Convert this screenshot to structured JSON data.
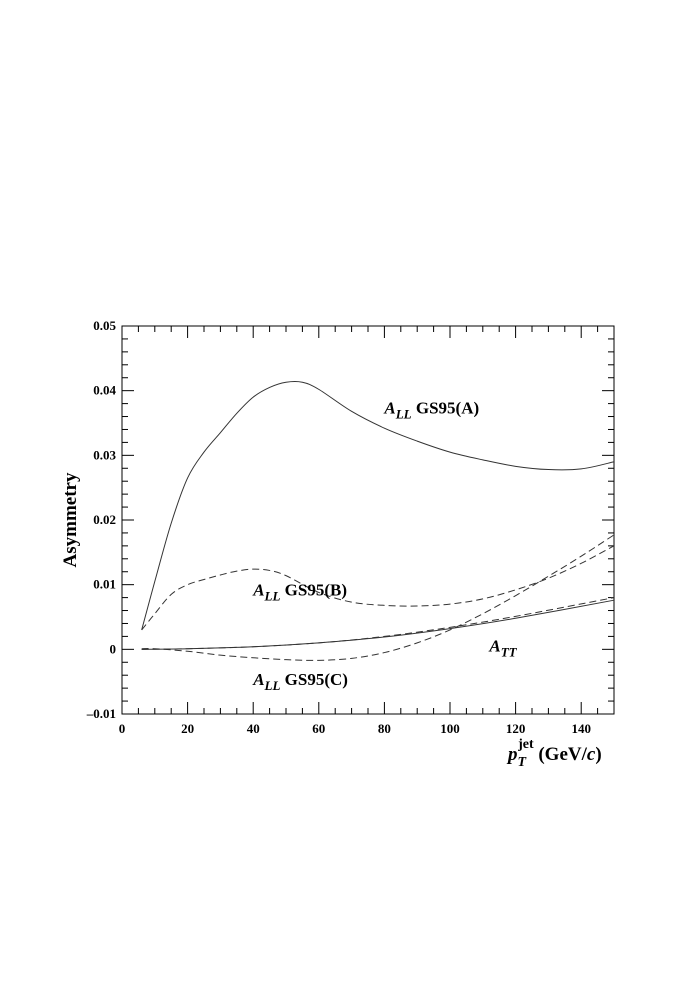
{
  "chart_data": {
    "type": "line",
    "title": "",
    "xlabel": {
      "main": "p",
      "sub": "T",
      "sup": "jet",
      "unit_open": " (GeV/",
      "unit_italic": "c",
      "unit_close": ")"
    },
    "ylabel": "Asymmetry",
    "xlim": [
      0,
      150
    ],
    "ylim": [
      -0.01,
      0.05
    ],
    "x_major_ticks": [
      0,
      20,
      40,
      60,
      80,
      100,
      120,
      140
    ],
    "x_tick_labels": [
      "0",
      "20",
      "40",
      "60",
      "80",
      "100",
      "120",
      "140"
    ],
    "y_major_ticks": [
      -0.01,
      0,
      0.01,
      0.02,
      0.03,
      0.04,
      0.05
    ],
    "y_tick_labels": [
      "–0.01",
      "0",
      "0.01",
      "0.02",
      "0.03",
      "0.04",
      "0.05"
    ],
    "grid": false,
    "legend": "none",
    "series": [
      {
        "style": "solid",
        "x": [
          6,
          10,
          15,
          20,
          25,
          30,
          35,
          40,
          45,
          50,
          55,
          60,
          70,
          80,
          90,
          100,
          110,
          120,
          130,
          140,
          150
        ],
        "y": [
          0.003,
          0.0105,
          0.0195,
          0.0265,
          0.0305,
          0.0335,
          0.0365,
          0.039,
          0.0405,
          0.0413,
          0.0413,
          0.0402,
          0.0368,
          0.0342,
          0.0322,
          0.0305,
          0.0293,
          0.0283,
          0.0278,
          0.0279,
          0.029
        ]
      },
      {
        "style": "dashed",
        "x": [
          6,
          10,
          15,
          20,
          25,
          30,
          35,
          40,
          45,
          50,
          60,
          70,
          80,
          90,
          100,
          110,
          120,
          130,
          140,
          150
        ],
        "y": [
          0.003,
          0.0055,
          0.0085,
          0.01,
          0.0108,
          0.0115,
          0.0121,
          0.0124,
          0.0122,
          0.0114,
          0.0088,
          0.0073,
          0.0068,
          0.0067,
          0.007,
          0.0078,
          0.0092,
          0.011,
          0.0133,
          0.016
        ]
      },
      {
        "style": "dashed",
        "x": [
          6,
          10,
          20,
          30,
          40,
          50,
          60,
          70,
          80,
          90,
          100,
          110,
          120,
          130,
          140,
          150
        ],
        "y": [
          0.0001,
          0.0001,
          -0.0003,
          -0.0009,
          -0.0013,
          -0.0016,
          -0.0017,
          -0.0014,
          -0.0005,
          0.001,
          0.003,
          0.0055,
          0.0083,
          0.0113,
          0.0144,
          0.0177
        ]
      },
      {
        "style": "solid",
        "x": [
          6,
          20,
          40,
          60,
          80,
          100,
          120,
          150
        ],
        "y": [
          0.0,
          0.0001,
          0.0004,
          0.001,
          0.0019,
          0.0032,
          0.0048,
          0.0076
        ]
      },
      {
        "style": "dashed",
        "x": [
          6,
          20,
          40,
          60,
          80,
          100,
          120,
          150
        ],
        "y": [
          0.0,
          0.0001,
          0.0004,
          0.001,
          0.002,
          0.0034,
          0.0051,
          0.008
        ]
      }
    ],
    "annotations": [
      {
        "main": "A",
        "sub": "LL",
        "text": " GS95(A)",
        "x": 80,
        "y": 0.0365
      },
      {
        "main": "A",
        "sub": "LL",
        "text": " GS95(B)",
        "x": 40,
        "y": 0.0083
      },
      {
        "main": "A",
        "sub": "LL",
        "text": " GS95(C)",
        "x": 40,
        "y": -0.0055
      },
      {
        "main": "A",
        "sub": "TT",
        "text": "",
        "x": 112,
        "y": -0.0003
      }
    ]
  }
}
